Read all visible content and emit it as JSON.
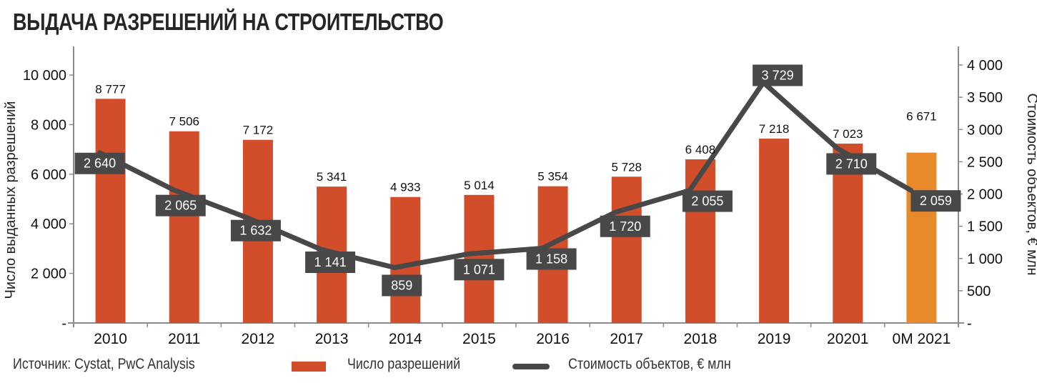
{
  "title": "ВЫДАЧА РАЗРЕШЕНИЙ НА СТРОИТЕЛЬСТВО",
  "source": "Источник: Cystat, PwC Analysis",
  "legend": {
    "bars": "Число разрешений",
    "line": "Стоимость объектов, € млн"
  },
  "colors": {
    "bar": "#d24e2b",
    "bar_highlight": "#e8892a",
    "line": "#484848",
    "label_box": "#484848",
    "axis": "#8c8c8c"
  },
  "chart_data": {
    "type": "bar+line",
    "title": "ВЫДАЧА РАЗРЕШЕНИЙ НА СТРОИТЕЛЬСТВО",
    "categories": [
      "2010",
      "2011",
      "2012",
      "2013",
      "2014",
      "2015",
      "2016",
      "2017",
      "2018",
      "2019",
      "20201",
      "0M 2021"
    ],
    "series": [
      {
        "name": "Число разрешений",
        "type": "bar",
        "axis": "left",
        "values": [
          8777,
          7506,
          7172,
          5341,
          4933,
          5014,
          5354,
          5728,
          6408,
          7218,
          7023,
          6671
        ],
        "labels": [
          "8 777",
          "7 506",
          "7 172",
          "5 341",
          "4 933",
          "5 014",
          "5 354",
          "5 728",
          "6 408",
          "7 218",
          "7 023",
          "6 671"
        ]
      },
      {
        "name": "Стоимость объектов, € млн",
        "type": "line",
        "axis": "right",
        "values": [
          2640,
          2065,
          1632,
          1141,
          859,
          1071,
          1158,
          1720,
          2055,
          3729,
          2710,
          2059
        ],
        "labels": [
          "2 640",
          "2 065",
          "1 632",
          "1 141",
          "859",
          "1 071",
          "1 158",
          "1 720",
          "2 055",
          "3 729",
          "2 710",
          "2 059"
        ]
      }
    ],
    "ylabel_left": "Число выданных разрешений",
    "ylabel_right": "Стоимость объектов, € млн",
    "ylim_left": [
      0,
      10000
    ],
    "ylim_right": [
      0,
      4000
    ],
    "yticks_left": [
      "-",
      "2 000",
      "4 000",
      "6 000",
      "8 000",
      "10 000"
    ],
    "yticks_right": [
      "-",
      "500",
      "1 000",
      "1 500",
      "2 000",
      "2 500",
      "3 000",
      "3 500",
      "4 000"
    ],
    "grid": false,
    "legend_position": "bottom"
  }
}
